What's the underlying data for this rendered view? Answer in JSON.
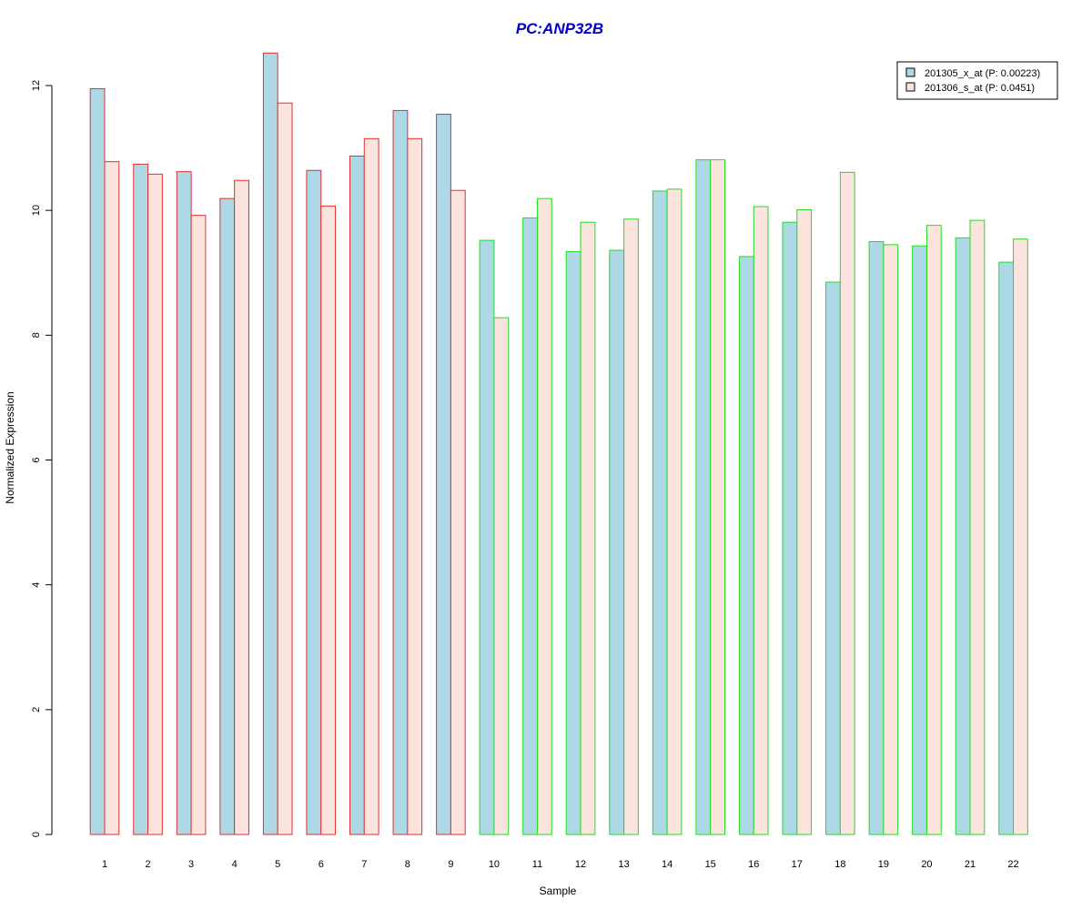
{
  "chart_data": {
    "type": "bar",
    "title": "PC:ANP32B",
    "xlabel": "Sample",
    "ylabel": "Normalized Expression",
    "ylim": [
      0,
      12.5
    ],
    "yticks": [
      "0",
      "2",
      "4",
      "6",
      "8",
      "10",
      "12"
    ],
    "grid": false,
    "legend_position": "top-right",
    "categories": [
      "1",
      "2",
      "3",
      "4",
      "5",
      "6",
      "7",
      "8",
      "9",
      "10",
      "11",
      "12",
      "13",
      "14",
      "15",
      "16",
      "17",
      "18",
      "19",
      "20",
      "21",
      "22"
    ],
    "series": [
      {
        "name": "201305_x_at (P: 0.00223)",
        "fill": "#add8e6",
        "values": [
          11.95,
          10.74,
          10.62,
          10.19,
          12.52,
          10.64,
          10.87,
          11.6,
          11.54,
          9.52,
          9.88,
          9.34,
          9.36,
          10.31,
          10.81,
          9.26,
          9.81,
          8.85,
          9.5,
          9.43,
          9.56,
          9.17
        ]
      },
      {
        "name": "201306_s_at (P: 0.0451)",
        "fill": "#fbe4de",
        "values": [
          10.78,
          10.58,
          9.92,
          10.48,
          11.72,
          10.07,
          11.15,
          11.15,
          10.32,
          8.28,
          10.19,
          9.81,
          9.86,
          10.34,
          10.81,
          10.06,
          10.01,
          10.61,
          9.45,
          9.76,
          9.84,
          9.54
        ]
      }
    ],
    "groups": [
      {
        "samples": [
          1,
          2,
          3,
          4,
          5,
          6,
          7,
          8,
          9
        ],
        "border_color": "#e03030"
      },
      {
        "samples": [
          10,
          11,
          12,
          13,
          14,
          15,
          16,
          17,
          18,
          19,
          20,
          21,
          22
        ],
        "border_color": "#22dd22"
      }
    ],
    "title_color": "#0000cc"
  }
}
